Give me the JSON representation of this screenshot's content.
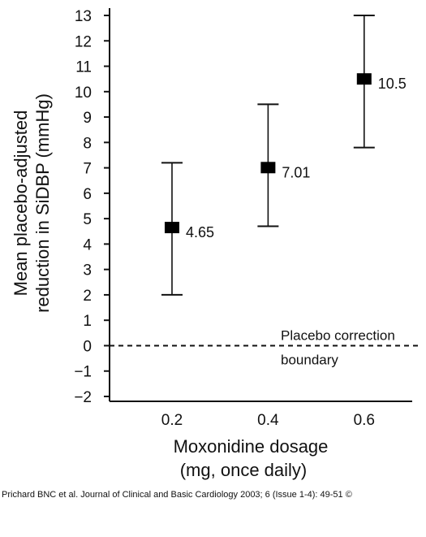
{
  "chart_data": {
    "type": "scatter",
    "error_bars": true,
    "categories": [
      "0.2",
      "0.4",
      "0.6"
    ],
    "points": [
      {
        "x": 0.2,
        "y": 4.65,
        "low": 2.0,
        "high": 7.2,
        "label": "4.65"
      },
      {
        "x": 0.4,
        "y": 7.01,
        "low": 4.7,
        "high": 9.5,
        "label": "7.01"
      },
      {
        "x": 0.6,
        "y": 10.5,
        "low": 7.8,
        "high": 13.0,
        "label": "10.5"
      }
    ],
    "xlim": [
      0.07,
      0.7
    ],
    "ylim": [
      -2,
      13
    ],
    "yticks": [
      "13",
      "12",
      "11",
      "10",
      "9",
      "8",
      "7",
      "6",
      "5",
      "4",
      "3",
      "2",
      "1",
      "0",
      "−1",
      "−2"
    ],
    "ylabel_line1": "Mean placebo-adjusted",
    "ylabel_line2": "reduction in SiDBP (mmHg)",
    "xlabel_line1": "Moxonidine dosage",
    "xlabel_line2": "(mg, once daily)",
    "reference_line": {
      "y": 0,
      "style": "dashed",
      "label_line1": "Placebo correction",
      "label_line2": "boundary"
    },
    "grid": false,
    "marker_color": "#000000"
  },
  "citation": "Prichard BNC et al. Journal of Clinical and Basic Cardiology 2003; 6 (Issue 1-4): 49-51 ©"
}
